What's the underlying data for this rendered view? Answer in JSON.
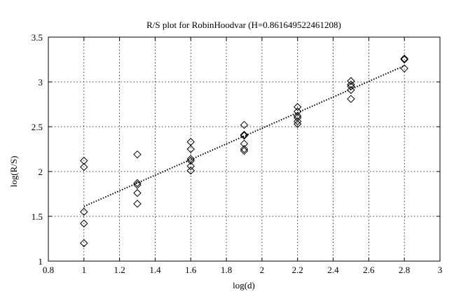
{
  "chart_data": {
    "type": "scatter",
    "title": "R/S plot for RobinHoodvar (H=0.861649522461208)",
    "xlabel": "log(d)",
    "ylabel": "log(R/S)",
    "xlim": [
      0.8,
      3
    ],
    "ylim": [
      1,
      3.5
    ],
    "xticks": [
      "0.8",
      "1",
      "1.2",
      "1.4",
      "1.6",
      "1.8",
      "2",
      "2.2",
      "2.4",
      "2.6",
      "2.8",
      "3"
    ],
    "yticks": [
      "1",
      "1.5",
      "2",
      "2.5",
      "3",
      "3.5"
    ],
    "grid": true,
    "series": [
      {
        "marker": "diamond",
        "points": [
          [
            1.0,
            2.12
          ],
          [
            1.0,
            2.05
          ],
          [
            1.0,
            1.55
          ],
          [
            1.0,
            1.42
          ],
          [
            1.0,
            1.2
          ],
          [
            1.3,
            2.19
          ],
          [
            1.3,
            1.87
          ],
          [
            1.3,
            1.85
          ],
          [
            1.3,
            1.76
          ],
          [
            1.3,
            1.64
          ],
          [
            1.6,
            2.33
          ],
          [
            1.6,
            2.25
          ],
          [
            1.6,
            2.14
          ],
          [
            1.6,
            2.12
          ],
          [
            1.6,
            2.06
          ],
          [
            1.6,
            2.01
          ],
          [
            1.9,
            2.52
          ],
          [
            1.9,
            2.41
          ],
          [
            1.9,
            2.4
          ],
          [
            1.9,
            2.31
          ],
          [
            1.9,
            2.25
          ],
          [
            1.9,
            2.23
          ],
          [
            2.2,
            2.72
          ],
          [
            2.2,
            2.67
          ],
          [
            2.2,
            2.62
          ],
          [
            2.2,
            2.6
          ],
          [
            2.2,
            2.56
          ],
          [
            2.2,
            2.53
          ],
          [
            2.5,
            3.01
          ],
          [
            2.5,
            2.97
          ],
          [
            2.5,
            2.95
          ],
          [
            2.5,
            2.91
          ],
          [
            2.5,
            2.81
          ],
          [
            2.8,
            3.26
          ],
          [
            2.8,
            3.25
          ],
          [
            2.8,
            3.15
          ]
        ]
      },
      {
        "style": "dotted-line",
        "points": [
          [
            1.0,
            1.61
          ],
          [
            2.8,
            3.18
          ]
        ]
      }
    ]
  }
}
